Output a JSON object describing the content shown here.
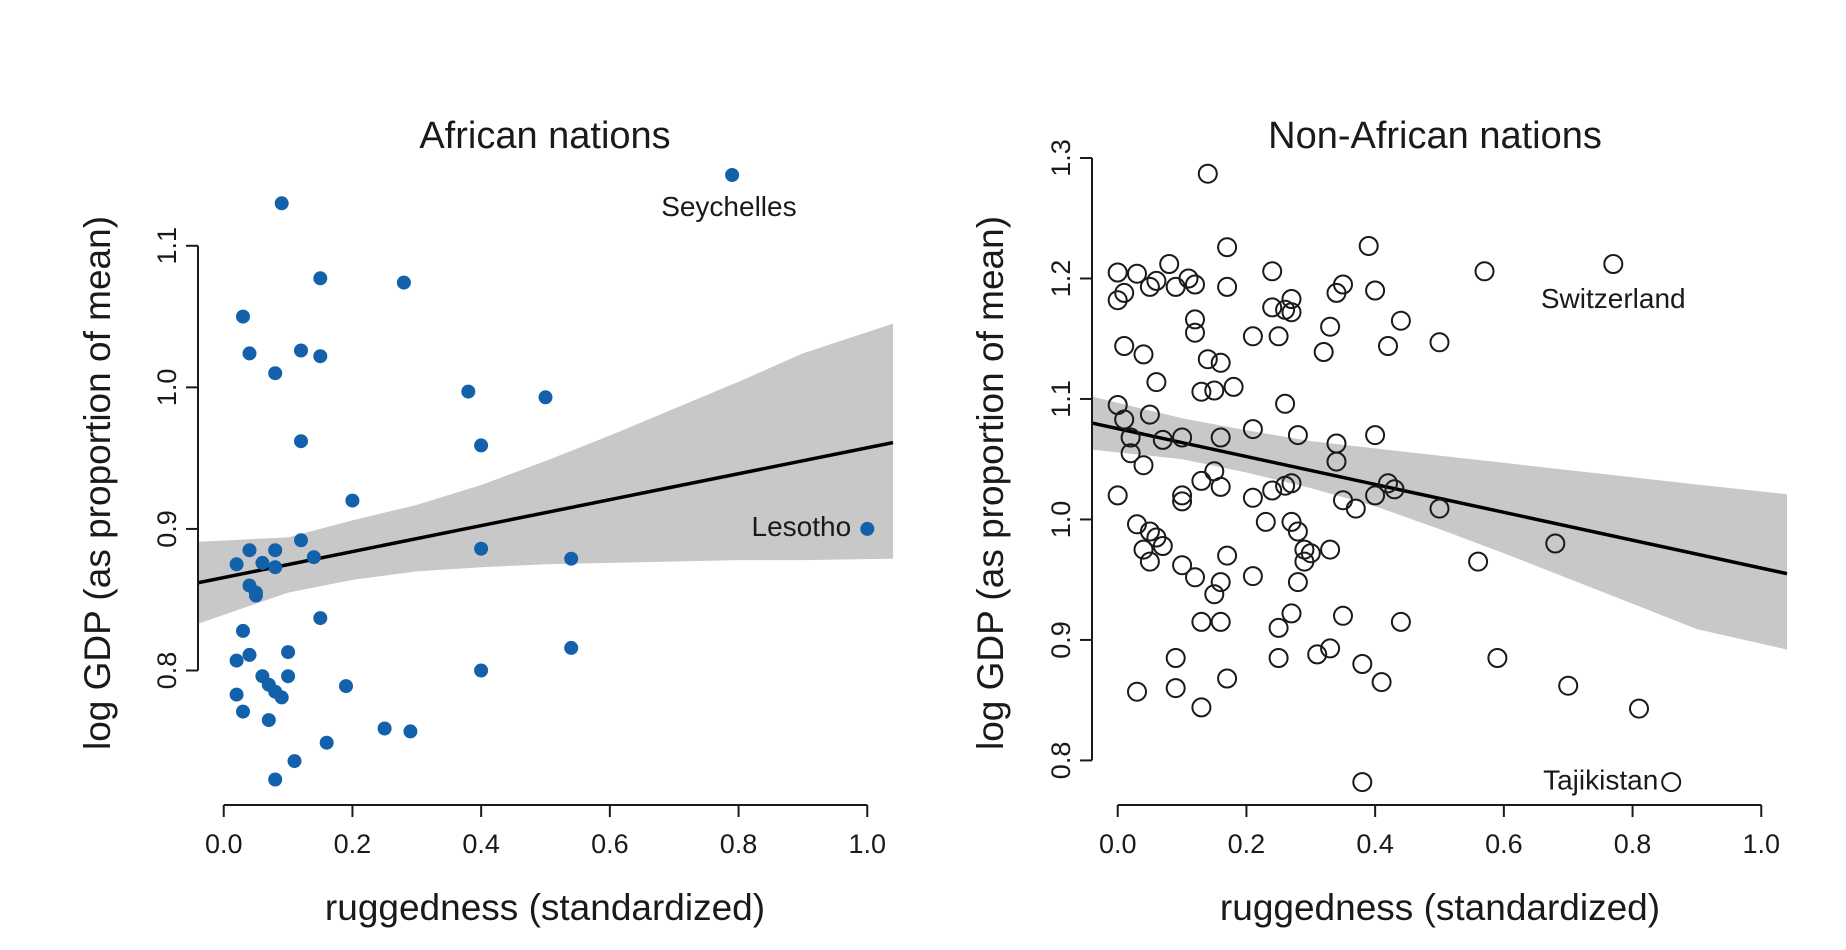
{
  "figure": {
    "colors": {
      "african_point": "#1461ab",
      "band": "#c8c8c8",
      "line": "#000000",
      "axis": "#1a1a1a"
    }
  },
  "chart_data": [
    {
      "type": "scatter",
      "title": "African nations",
      "xlabel": "ruggedness (standardized)",
      "ylabel": "log GDP (as proportion of mean)",
      "xlim": [
        -0.04,
        1.04
      ],
      "ylim": [
        0.705,
        1.162
      ],
      "xticks": [
        0.0,
        0.2,
        0.4,
        0.6,
        0.8,
        1.0
      ],
      "xtick_labels": [
        "0.0",
        "0.2",
        "0.4",
        "0.6",
        "0.8",
        "1.0"
      ],
      "yticks": [
        0.8,
        0.9,
        1.0,
        1.1
      ],
      "ytick_labels": [
        "0.8",
        "0.9",
        "1.0",
        "1.1"
      ],
      "grid": false,
      "marker": "filled",
      "points": [
        [
          0.09,
          1.13
        ],
        [
          0.03,
          1.05
        ],
        [
          0.15,
          1.077
        ],
        [
          0.28,
          1.074
        ],
        [
          0.04,
          1.024
        ],
        [
          0.12,
          1.026
        ],
        [
          0.15,
          1.022
        ],
        [
          0.08,
          1.01
        ],
        [
          0.38,
          0.997
        ],
        [
          0.5,
          0.993
        ],
        [
          0.12,
          0.962
        ],
        [
          0.4,
          0.959
        ],
        [
          0.2,
          0.92
        ],
        [
          0.12,
          0.892
        ],
        [
          0.04,
          0.885
        ],
        [
          0.08,
          0.885
        ],
        [
          0.14,
          0.88
        ],
        [
          0.06,
          0.876
        ],
        [
          0.02,
          0.875
        ],
        [
          0.08,
          0.873
        ],
        [
          0.04,
          0.86
        ],
        [
          0.05,
          0.855
        ],
        [
          0.05,
          0.853
        ],
        [
          0.4,
          0.886
        ],
        [
          0.54,
          0.879
        ],
        [
          0.03,
          0.828
        ],
        [
          0.15,
          0.837
        ],
        [
          0.1,
          0.813
        ],
        [
          0.04,
          0.811
        ],
        [
          0.02,
          0.807
        ],
        [
          0.54,
          0.816
        ],
        [
          0.06,
          0.796
        ],
        [
          0.1,
          0.796
        ],
        [
          0.07,
          0.79
        ],
        [
          0.19,
          0.789
        ],
        [
          0.08,
          0.785
        ],
        [
          0.09,
          0.781
        ],
        [
          0.02,
          0.783
        ],
        [
          0.4,
          0.8
        ],
        [
          0.03,
          0.771
        ],
        [
          0.07,
          0.765
        ],
        [
          0.25,
          0.759
        ],
        [
          0.29,
          0.757
        ],
        [
          0.16,
          0.749
        ],
        [
          0.11,
          0.736
        ],
        [
          0.08,
          0.723
        ],
        [
          0.79,
          1.15
        ],
        [
          1.0,
          0.9
        ]
      ],
      "regression": {
        "x": [
          -0.04,
          1.04
        ],
        "y": [
          0.862,
          0.961
        ]
      },
      "interval": {
        "x": [
          -0.04,
          0.1,
          0.2,
          0.3,
          0.4,
          0.5,
          0.6,
          0.7,
          0.8,
          0.9,
          1.04
        ],
        "lower": [
          0.833,
          0.855,
          0.864,
          0.87,
          0.873,
          0.875,
          0.876,
          0.877,
          0.878,
          0.878,
          0.879
        ],
        "upper": [
          0.891,
          0.894,
          0.906,
          0.917,
          0.931,
          0.948,
          0.966,
          0.985,
          1.004,
          1.024,
          1.045
        ]
      },
      "annotations": [
        {
          "text": "Seychelles",
          "x": 0.785,
          "y": 1.128,
          "anchor": "middle"
        },
        {
          "text": "Lesotho",
          "x": 0.975,
          "y": 0.902,
          "anchor": "end"
        }
      ]
    },
    {
      "type": "scatter",
      "title": "Non-African nations",
      "xlabel": "ruggedness (standardized)",
      "ylabel": "log GDP (as proportion of mean)",
      "xlim": [
        -0.04,
        1.04
      ],
      "ylim": [
        0.763,
        1.3
      ],
      "xticks": [
        0.0,
        0.2,
        0.4,
        0.6,
        0.8,
        1.0
      ],
      "xtick_labels": [
        "0.0",
        "0.2",
        "0.4",
        "0.6",
        "0.8",
        "1.0"
      ],
      "yticks": [
        0.8,
        0.9,
        1.0,
        1.1,
        1.2,
        1.3
      ],
      "ytick_labels": [
        "0.8",
        "0.9",
        "1.0",
        "1.1",
        "1.2",
        "1.3"
      ],
      "grid": false,
      "marker": "open",
      "points": [
        [
          0.14,
          1.287
        ],
        [
          0.17,
          1.226
        ],
        [
          0.39,
          1.227
        ],
        [
          0.77,
          1.212
        ],
        [
          0.57,
          1.206
        ],
        [
          0.08,
          1.212
        ],
        [
          0.24,
          1.206
        ],
        [
          0.0,
          1.205
        ],
        [
          0.03,
          1.204
        ],
        [
          0.05,
          1.193
        ],
        [
          0.06,
          1.198
        ],
        [
          0.09,
          1.193
        ],
        [
          0.11,
          1.2
        ],
        [
          0.12,
          1.195
        ],
        [
          0.17,
          1.193
        ],
        [
          0.35,
          1.195
        ],
        [
          0.4,
          1.19
        ],
        [
          0.01,
          1.188
        ],
        [
          0.0,
          1.182
        ],
        [
          0.27,
          1.183
        ],
        [
          0.34,
          1.188
        ],
        [
          0.24,
          1.176
        ],
        [
          0.26,
          1.174
        ],
        [
          0.27,
          1.172
        ],
        [
          0.44,
          1.165
        ],
        [
          0.12,
          1.166
        ],
        [
          0.21,
          1.152
        ],
        [
          0.25,
          1.152
        ],
        [
          0.33,
          1.16
        ],
        [
          0.12,
          1.155
        ],
        [
          0.01,
          1.144
        ],
        [
          0.04,
          1.137
        ],
        [
          0.42,
          1.144
        ],
        [
          0.5,
          1.147
        ],
        [
          0.32,
          1.139
        ],
        [
          0.14,
          1.133
        ],
        [
          0.16,
          1.13
        ],
        [
          0.06,
          1.114
        ],
        [
          0.13,
          1.106
        ],
        [
          0.15,
          1.107
        ],
        [
          0.18,
          1.11
        ],
        [
          0.26,
          1.096
        ],
        [
          0.0,
          1.095
        ],
        [
          0.01,
          1.083
        ],
        [
          0.05,
          1.087
        ],
        [
          0.21,
          1.075
        ],
        [
          0.02,
          1.068
        ],
        [
          0.07,
          1.066
        ],
        [
          0.1,
          1.068
        ],
        [
          0.16,
          1.068
        ],
        [
          0.28,
          1.07
        ],
        [
          0.4,
          1.07
        ],
        [
          0.02,
          1.055
        ],
        [
          0.04,
          1.045
        ],
        [
          0.15,
          1.04
        ],
        [
          0.34,
          1.063
        ],
        [
          0.34,
          1.048
        ],
        [
          0.13,
          1.032
        ],
        [
          0.16,
          1.027
        ],
        [
          0.24,
          1.024
        ],
        [
          0.26,
          1.028
        ],
        [
          0.27,
          1.03
        ],
        [
          0.42,
          1.03
        ],
        [
          0.0,
          1.02
        ],
        [
          0.1,
          1.02
        ],
        [
          0.1,
          1.015
        ],
        [
          0.21,
          1.018
        ],
        [
          0.35,
          1.016
        ],
        [
          0.37,
          1.009
        ],
        [
          0.4,
          1.02
        ],
        [
          0.43,
          1.025
        ],
        [
          0.5,
          1.009
        ],
        [
          0.03,
          0.996
        ],
        [
          0.05,
          0.99
        ],
        [
          0.06,
          0.985
        ],
        [
          0.23,
          0.998
        ],
        [
          0.27,
          0.998
        ],
        [
          0.28,
          0.99
        ],
        [
          0.04,
          0.975
        ],
        [
          0.07,
          0.978
        ],
        [
          0.29,
          0.975
        ],
        [
          0.3,
          0.972
        ],
        [
          0.33,
          0.975
        ],
        [
          0.17,
          0.97
        ],
        [
          0.29,
          0.965
        ],
        [
          0.05,
          0.965
        ],
        [
          0.1,
          0.962
        ],
        [
          0.56,
          0.965
        ],
        [
          0.68,
          0.98
        ],
        [
          0.12,
          0.952
        ],
        [
          0.16,
          0.948
        ],
        [
          0.21,
          0.953
        ],
        [
          0.28,
          0.948
        ],
        [
          0.15,
          0.938
        ],
        [
          0.13,
          0.915
        ],
        [
          0.16,
          0.915
        ],
        [
          0.25,
          0.91
        ],
        [
          0.27,
          0.922
        ],
        [
          0.35,
          0.92
        ],
        [
          0.44,
          0.915
        ],
        [
          0.31,
          0.888
        ],
        [
          0.33,
          0.893
        ],
        [
          0.25,
          0.885
        ],
        [
          0.09,
          0.885
        ],
        [
          0.17,
          0.868
        ],
        [
          0.38,
          0.88
        ],
        [
          0.41,
          0.865
        ],
        [
          0.59,
          0.885
        ],
        [
          0.7,
          0.862
        ],
        [
          0.03,
          0.857
        ],
        [
          0.09,
          0.86
        ],
        [
          0.13,
          0.844
        ],
        [
          0.81,
          0.843
        ],
        [
          0.38,
          0.782
        ],
        [
          0.86,
          0.782
        ]
      ],
      "regression": {
        "x": [
          -0.04,
          1.04
        ],
        "y": [
          1.08,
          0.955
        ]
      },
      "interval": {
        "x": [
          -0.04,
          0.1,
          0.2,
          0.3,
          0.4,
          0.5,
          0.6,
          0.7,
          0.8,
          0.9,
          1.04
        ],
        "lower": [
          1.058,
          1.05,
          1.039,
          1.026,
          1.011,
          0.992,
          0.972,
          0.951,
          0.93,
          0.909,
          0.892
        ],
        "upper": [
          1.102,
          1.084,
          1.074,
          1.065,
          1.059,
          1.053,
          1.047,
          1.041,
          1.035,
          1.029,
          1.021
        ]
      },
      "annotations": [
        {
          "text": "Switzerland",
          "x": 0.77,
          "y": 1.184,
          "anchor": "middle"
        },
        {
          "text": "Tajikistan",
          "x": 0.84,
          "y": 0.784,
          "anchor": "end"
        }
      ]
    }
  ]
}
